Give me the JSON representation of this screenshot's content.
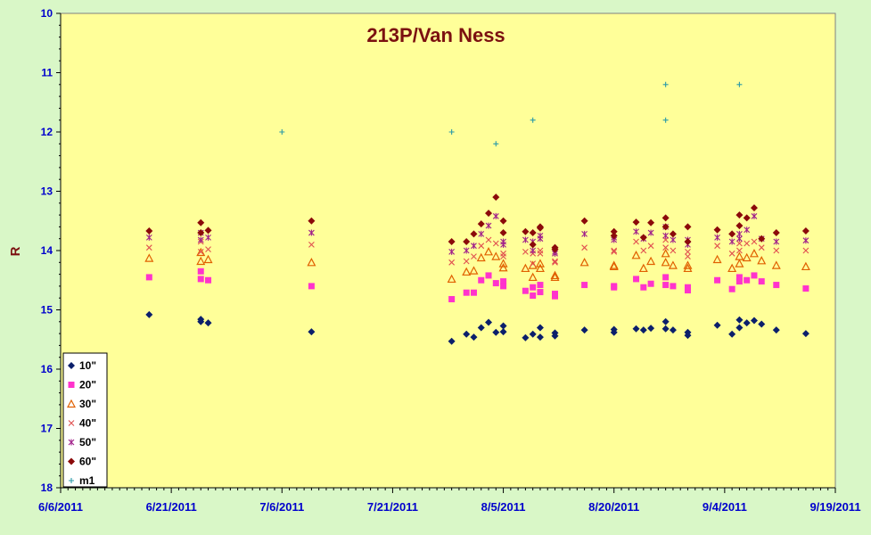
{
  "chart_data": {
    "type": "scatter",
    "title": "213P/Van Ness",
    "xlabel": "",
    "ylabel": "R",
    "y_inverted": true,
    "ylim": [
      10,
      18
    ],
    "xlim": [
      "2011-06-06",
      "2011-09-19"
    ],
    "x_ticks": [
      "6/6/2011",
      "6/21/2011",
      "7/6/2011",
      "7/21/2011",
      "8/5/2011",
      "8/20/2011",
      "9/4/2011",
      "9/19/2011"
    ],
    "y_ticks": [
      "10",
      "11",
      "12",
      "13",
      "14",
      "15",
      "16",
      "17",
      "18"
    ],
    "plot_background": "#ffff99",
    "legend_position": "bottom-left",
    "series": [
      {
        "name": "10\"",
        "color": "#0b1f6b",
        "marker": "diamond",
        "points": [
          [
            "2011-06-18",
            15.08
          ],
          [
            "2011-06-25",
            15.16
          ],
          [
            "2011-06-25",
            15.2
          ],
          [
            "2011-06-26",
            15.22
          ],
          [
            "2011-07-10",
            15.37
          ],
          [
            "2011-07-29",
            15.53
          ],
          [
            "2011-07-31",
            15.41
          ],
          [
            "2011-08-01",
            15.46
          ],
          [
            "2011-08-02",
            15.3
          ],
          [
            "2011-08-03",
            15.21
          ],
          [
            "2011-08-04",
            15.38
          ],
          [
            "2011-08-05",
            15.27
          ],
          [
            "2011-08-05",
            15.37
          ],
          [
            "2011-08-08",
            15.47
          ],
          [
            "2011-08-09",
            15.41
          ],
          [
            "2011-08-10",
            15.46
          ],
          [
            "2011-08-10",
            15.3
          ],
          [
            "2011-08-12",
            15.39
          ],
          [
            "2011-08-12",
            15.44
          ],
          [
            "2011-08-16",
            15.34
          ],
          [
            "2011-08-20",
            15.33
          ],
          [
            "2011-08-20",
            15.38
          ],
          [
            "2011-08-23",
            15.32
          ],
          [
            "2011-08-24",
            15.34
          ],
          [
            "2011-08-25",
            15.31
          ],
          [
            "2011-08-27",
            15.2
          ],
          [
            "2011-08-27",
            15.32
          ],
          [
            "2011-08-28",
            15.34
          ],
          [
            "2011-08-30",
            15.38
          ],
          [
            "2011-08-30",
            15.43
          ],
          [
            "2011-09-03",
            15.26
          ],
          [
            "2011-09-05",
            15.41
          ],
          [
            "2011-09-06",
            15.17
          ],
          [
            "2011-09-06",
            15.3
          ],
          [
            "2011-09-07",
            15.22
          ],
          [
            "2011-09-08",
            15.18
          ],
          [
            "2011-09-09",
            15.24
          ],
          [
            "2011-09-11",
            15.34
          ],
          [
            "2011-09-15",
            15.4
          ]
        ]
      },
      {
        "name": "20\"",
        "color": "#ff33cc",
        "marker": "square",
        "points": [
          [
            "2011-06-18",
            14.45
          ],
          [
            "2011-06-25",
            14.35
          ],
          [
            "2011-06-25",
            14.48
          ],
          [
            "2011-06-26",
            14.5
          ],
          [
            "2011-07-10",
            14.6
          ],
          [
            "2011-07-29",
            14.82
          ],
          [
            "2011-07-31",
            14.71
          ],
          [
            "2011-08-01",
            14.71
          ],
          [
            "2011-08-02",
            14.5
          ],
          [
            "2011-08-03",
            14.42
          ],
          [
            "2011-08-04",
            14.55
          ],
          [
            "2011-08-05",
            14.52
          ],
          [
            "2011-08-05",
            14.6
          ],
          [
            "2011-08-08",
            14.68
          ],
          [
            "2011-08-09",
            14.62
          ],
          [
            "2011-08-09",
            14.76
          ],
          [
            "2011-08-10",
            14.58
          ],
          [
            "2011-08-10",
            14.7
          ],
          [
            "2011-08-12",
            14.73
          ],
          [
            "2011-08-12",
            14.77
          ],
          [
            "2011-08-16",
            14.58
          ],
          [
            "2011-08-20",
            14.6
          ],
          [
            "2011-08-20",
            14.62
          ],
          [
            "2011-08-23",
            14.48
          ],
          [
            "2011-08-24",
            14.62
          ],
          [
            "2011-08-25",
            14.56
          ],
          [
            "2011-08-27",
            14.45
          ],
          [
            "2011-08-27",
            14.58
          ],
          [
            "2011-08-28",
            14.6
          ],
          [
            "2011-08-30",
            14.62
          ],
          [
            "2011-08-30",
            14.67
          ],
          [
            "2011-09-03",
            14.5
          ],
          [
            "2011-09-05",
            14.65
          ],
          [
            "2011-09-06",
            14.45
          ],
          [
            "2011-09-06",
            14.52
          ],
          [
            "2011-09-07",
            14.5
          ],
          [
            "2011-09-08",
            14.42
          ],
          [
            "2011-09-09",
            14.52
          ],
          [
            "2011-09-11",
            14.58
          ],
          [
            "2011-09-15",
            14.64
          ]
        ]
      },
      {
        "name": "30\"",
        "color": "#e06000",
        "marker": "triangle",
        "points": [
          [
            "2011-06-18",
            14.13
          ],
          [
            "2011-06-25",
            14.03
          ],
          [
            "2011-06-25",
            14.18
          ],
          [
            "2011-06-26",
            14.15
          ],
          [
            "2011-07-10",
            14.2
          ],
          [
            "2011-07-29",
            14.48
          ],
          [
            "2011-07-31",
            14.36
          ],
          [
            "2011-08-01",
            14.34
          ],
          [
            "2011-08-02",
            14.12
          ],
          [
            "2011-08-03",
            14.02
          ],
          [
            "2011-08-04",
            14.1
          ],
          [
            "2011-08-05",
            14.22
          ],
          [
            "2011-08-05",
            14.29
          ],
          [
            "2011-08-08",
            14.3
          ],
          [
            "2011-08-09",
            14.25
          ],
          [
            "2011-08-09",
            14.45
          ],
          [
            "2011-08-10",
            14.22
          ],
          [
            "2011-08-10",
            14.3
          ],
          [
            "2011-08-12",
            14.42
          ],
          [
            "2011-08-12",
            14.45
          ],
          [
            "2011-08-16",
            14.2
          ],
          [
            "2011-08-20",
            14.25
          ],
          [
            "2011-08-20",
            14.27
          ],
          [
            "2011-08-23",
            14.08
          ],
          [
            "2011-08-24",
            14.3
          ],
          [
            "2011-08-25",
            14.18
          ],
          [
            "2011-08-27",
            14.05
          ],
          [
            "2011-08-27",
            14.2
          ],
          [
            "2011-08-28",
            14.25
          ],
          [
            "2011-08-30",
            14.25
          ],
          [
            "2011-08-30",
            14.3
          ],
          [
            "2011-09-03",
            14.15
          ],
          [
            "2011-09-05",
            14.3
          ],
          [
            "2011-09-06",
            14.1
          ],
          [
            "2011-09-06",
            14.22
          ],
          [
            "2011-09-07",
            14.12
          ],
          [
            "2011-09-08",
            14.05
          ],
          [
            "2011-09-09",
            14.17
          ],
          [
            "2011-09-11",
            14.25
          ],
          [
            "2011-09-15",
            14.27
          ]
        ]
      },
      {
        "name": "40\"",
        "color": "#e05050",
        "marker": "x",
        "points": [
          [
            "2011-06-18",
            13.95
          ],
          [
            "2011-06-25",
            13.85
          ],
          [
            "2011-06-25",
            14.02
          ],
          [
            "2011-06-26",
            13.98
          ],
          [
            "2011-07-10",
            13.9
          ],
          [
            "2011-07-29",
            14.2
          ],
          [
            "2011-07-31",
            14.18
          ],
          [
            "2011-08-01",
            14.1
          ],
          [
            "2011-08-02",
            13.92
          ],
          [
            "2011-08-03",
            13.82
          ],
          [
            "2011-08-04",
            13.88
          ],
          [
            "2011-08-05",
            14.05
          ],
          [
            "2011-08-05",
            14.1
          ],
          [
            "2011-08-08",
            14.02
          ],
          [
            "2011-08-09",
            14.05
          ],
          [
            "2011-08-09",
            14.22
          ],
          [
            "2011-08-10",
            14.0
          ],
          [
            "2011-08-10",
            14.05
          ],
          [
            "2011-08-12",
            14.18
          ],
          [
            "2011-08-12",
            14.2
          ],
          [
            "2011-08-16",
            13.95
          ],
          [
            "2011-08-20",
            14.02
          ],
          [
            "2011-08-20",
            14.0
          ],
          [
            "2011-08-23",
            13.85
          ],
          [
            "2011-08-24",
            14.0
          ],
          [
            "2011-08-25",
            13.92
          ],
          [
            "2011-08-27",
            13.82
          ],
          [
            "2011-08-27",
            13.95
          ],
          [
            "2011-08-28",
            14.0
          ],
          [
            "2011-08-30",
            14.02
          ],
          [
            "2011-08-30",
            14.1
          ],
          [
            "2011-09-03",
            13.92
          ],
          [
            "2011-09-05",
            14.05
          ],
          [
            "2011-09-06",
            13.88
          ],
          [
            "2011-09-06",
            14.0
          ],
          [
            "2011-09-07",
            13.88
          ],
          [
            "2011-09-08",
            13.85
          ],
          [
            "2011-09-09",
            13.95
          ],
          [
            "2011-09-11",
            14.0
          ],
          [
            "2011-09-15",
            14.0
          ]
        ]
      },
      {
        "name": "50\"",
        "color": "#a0208a",
        "marker": "asterisk",
        "points": [
          [
            "2011-06-18",
            13.78
          ],
          [
            "2011-06-25",
            13.7
          ],
          [
            "2011-06-25",
            13.82
          ],
          [
            "2011-06-26",
            13.78
          ],
          [
            "2011-07-10",
            13.7
          ],
          [
            "2011-07-29",
            14.02
          ],
          [
            "2011-07-31",
            14.0
          ],
          [
            "2011-08-01",
            13.92
          ],
          [
            "2011-08-02",
            13.72
          ],
          [
            "2011-08-03",
            13.58
          ],
          [
            "2011-08-04",
            13.42
          ],
          [
            "2011-08-05",
            13.85
          ],
          [
            "2011-08-05",
            13.9
          ],
          [
            "2011-08-08",
            13.82
          ],
          [
            "2011-08-09",
            13.85
          ],
          [
            "2011-08-09",
            14.0
          ],
          [
            "2011-08-10",
            13.8
          ],
          [
            "2011-08-10",
            13.75
          ],
          [
            "2011-08-12",
            14.02
          ],
          [
            "2011-08-12",
            14.05
          ],
          [
            "2011-08-16",
            13.72
          ],
          [
            "2011-08-20",
            13.82
          ],
          [
            "2011-08-20",
            13.78
          ],
          [
            "2011-08-23",
            13.68
          ],
          [
            "2011-08-24",
            13.8
          ],
          [
            "2011-08-25",
            13.7
          ],
          [
            "2011-08-27",
            13.6
          ],
          [
            "2011-08-27",
            13.75
          ],
          [
            "2011-08-28",
            13.82
          ],
          [
            "2011-08-30",
            13.82
          ],
          [
            "2011-08-30",
            13.9
          ],
          [
            "2011-09-03",
            13.78
          ],
          [
            "2011-09-05",
            13.85
          ],
          [
            "2011-09-06",
            13.72
          ],
          [
            "2011-09-06",
            13.8
          ],
          [
            "2011-09-07",
            13.65
          ],
          [
            "2011-09-08",
            13.42
          ],
          [
            "2011-09-09",
            13.8
          ],
          [
            "2011-09-11",
            13.85
          ],
          [
            "2011-09-15",
            13.83
          ]
        ]
      },
      {
        "name": "60\"",
        "color": "#8b0a0a",
        "marker": "circle",
        "points": [
          [
            "2011-06-18",
            13.67
          ],
          [
            "2011-06-25",
            13.53
          ],
          [
            "2011-06-25",
            13.7
          ],
          [
            "2011-06-26",
            13.66
          ],
          [
            "2011-07-10",
            13.5
          ],
          [
            "2011-07-29",
            13.85
          ],
          [
            "2011-07-31",
            13.85
          ],
          [
            "2011-08-01",
            13.72
          ],
          [
            "2011-08-02",
            13.55
          ],
          [
            "2011-08-03",
            13.37
          ],
          [
            "2011-08-04",
            13.1
          ],
          [
            "2011-08-05",
            13.5
          ],
          [
            "2011-08-05",
            13.7
          ],
          [
            "2011-08-08",
            13.68
          ],
          [
            "2011-08-09",
            13.9
          ],
          [
            "2011-08-09",
            13.7
          ],
          [
            "2011-08-10",
            13.6
          ],
          [
            "2011-08-10",
            13.62
          ],
          [
            "2011-08-12",
            13.95
          ],
          [
            "2011-08-12",
            13.98
          ],
          [
            "2011-08-16",
            13.5
          ],
          [
            "2011-08-20",
            13.68
          ],
          [
            "2011-08-20",
            13.75
          ],
          [
            "2011-08-23",
            13.52
          ],
          [
            "2011-08-24",
            13.78
          ],
          [
            "2011-08-25",
            13.53
          ],
          [
            "2011-08-27",
            13.45
          ],
          [
            "2011-08-27",
            13.6
          ],
          [
            "2011-08-28",
            13.72
          ],
          [
            "2011-08-30",
            13.6
          ],
          [
            "2011-08-30",
            13.85
          ],
          [
            "2011-09-03",
            13.65
          ],
          [
            "2011-09-05",
            13.72
          ],
          [
            "2011-09-06",
            13.58
          ],
          [
            "2011-09-06",
            13.4
          ],
          [
            "2011-09-07",
            13.45
          ],
          [
            "2011-09-08",
            13.28
          ],
          [
            "2011-09-09",
            13.8
          ],
          [
            "2011-09-11",
            13.7
          ],
          [
            "2011-09-15",
            13.67
          ]
        ]
      },
      {
        "name": "m1",
        "color": "#2a9aa8",
        "marker": "plus",
        "points": [
          [
            "2011-07-06",
            12.0
          ],
          [
            "2011-07-29",
            12.0
          ],
          [
            "2011-08-04",
            12.2
          ],
          [
            "2011-08-09",
            11.8
          ],
          [
            "2011-08-27",
            11.2
          ],
          [
            "2011-08-27",
            11.8
          ],
          [
            "2011-09-06",
            11.2
          ]
        ]
      }
    ]
  }
}
